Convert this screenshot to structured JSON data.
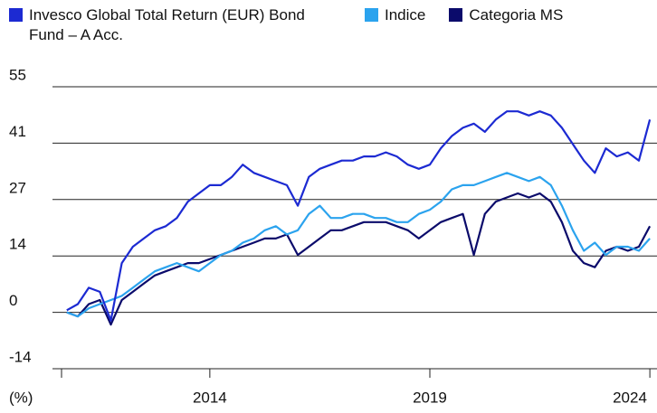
{
  "chart_data": {
    "type": "line",
    "y_label": "(%)",
    "x": [
      2010.75,
      2011,
      2011.25,
      2011.5,
      2011.75,
      2012,
      2012.25,
      2012.5,
      2012.75,
      2013,
      2013.25,
      2013.5,
      2013.75,
      2014,
      2014.25,
      2014.5,
      2014.75,
      2015,
      2015.25,
      2015.5,
      2015.75,
      2016,
      2016.25,
      2016.5,
      2016.75,
      2017,
      2017.25,
      2017.5,
      2017.75,
      2018,
      2018.25,
      2018.5,
      2018.75,
      2019,
      2019.25,
      2019.5,
      2019.75,
      2020,
      2020.25,
      2020.5,
      2020.75,
      2021,
      2021.25,
      2021.5,
      2021.75,
      2022,
      2022.25,
      2022.5,
      2022.75,
      2023,
      2023.25,
      2023.5,
      2023.75,
      2024
    ],
    "series": [
      {
        "name": "Invesco Global Total Return (EUR) Bond Fund – A Acc.",
        "color": "#1c2ad2",
        "values": [
          0.5,
          2,
          6,
          5,
          -2,
          12,
          16,
          18,
          20,
          21,
          23,
          27,
          29,
          31,
          31,
          33,
          36,
          34,
          33,
          32,
          31,
          26,
          33,
          35,
          36,
          37,
          37,
          38,
          38,
          39,
          38,
          36,
          35,
          36,
          40,
          43,
          45,
          46,
          44,
          47,
          49,
          49,
          48,
          49,
          48,
          45,
          41,
          37,
          34,
          40,
          38,
          39,
          37,
          47
        ]
      },
      {
        "name": "Indice",
        "color": "#2ba3ee",
        "values": [
          0,
          -1,
          1,
          2,
          3,
          4,
          6,
          8,
          10,
          11,
          12,
          11,
          10,
          12,
          14,
          15,
          17,
          18,
          20,
          21,
          19,
          20,
          24,
          26,
          23,
          23,
          24,
          24,
          23,
          23,
          22,
          22,
          24,
          25,
          27,
          30,
          31,
          31,
          32,
          33,
          34,
          33,
          32,
          33,
          31,
          26,
          20,
          15,
          17,
          14,
          16,
          16,
          15,
          18
        ]
      },
      {
        "name": "Categoria MS",
        "color": "#0b0b6b",
        "values": [
          0,
          -1,
          2,
          3,
          -3,
          3,
          5,
          7,
          9,
          10,
          11,
          12,
          12,
          13,
          14,
          15,
          16,
          17,
          18,
          18,
          19,
          14,
          16,
          18,
          20,
          20,
          21,
          22,
          22,
          22,
          21,
          20,
          18,
          20,
          22,
          23,
          24,
          14,
          24,
          27,
          28,
          29,
          28,
          29,
          27,
          22,
          15,
          12,
          11,
          15,
          16,
          15,
          16,
          21
        ]
      }
    ],
    "xlim": [
      2010.63,
      2024.08
    ],
    "xticks": [
      2014,
      2019,
      2024
    ],
    "ylim": [
      -13.75,
      55
    ],
    "yticks": [
      {
        "value": -13.75,
        "label": "-14"
      },
      {
        "value": 0,
        "label": "0"
      },
      {
        "value": 13.75,
        "label": "14"
      },
      {
        "value": 27.5,
        "label": "27"
      },
      {
        "value": 41.25,
        "label": "41"
      },
      {
        "value": 55,
        "label": "55"
      }
    ],
    "grid": true,
    "legend": "top-left"
  }
}
